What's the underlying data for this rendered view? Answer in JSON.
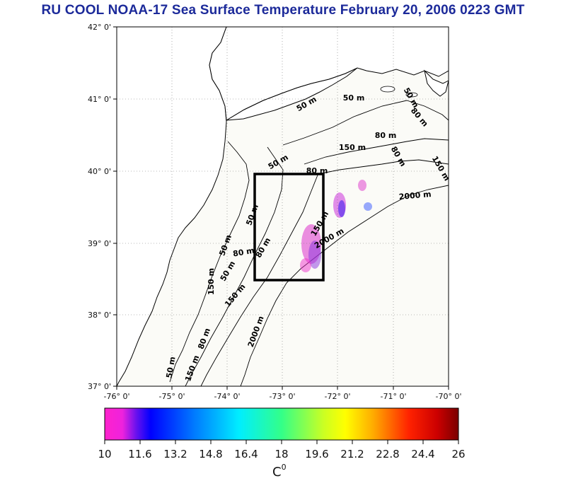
{
  "title": "RU COOL  NOAA-17 Sea Surface Temperature February 20, 2006 0223 GMT",
  "lat_labels": [
    "42° 0'",
    "41° 0'",
    "40° 0'",
    "39° 0'",
    "38° 0'",
    "37° 0'"
  ],
  "lon_labels": [
    "-76° 0'",
    "-75° 0'",
    "-74° 0'",
    "-73° 0'",
    "-72° 0'",
    "-71° 0'",
    "-70° 0'"
  ],
  "contour_labels": [
    "50 m",
    "50 m",
    "50 m",
    "80 m",
    "80 m",
    "80 m",
    "150 m",
    "150 m",
    "2000 m",
    "50 m",
    "80 m",
    "150 m",
    "2000 m",
    "50 m",
    "80 m",
    "150 m",
    "2000 m",
    "50 m",
    "50 m",
    "150 m",
    "80 m",
    "150 m",
    "80 m",
    "50 m"
  ],
  "colorbar": {
    "ticks": [
      "10",
      "11.6",
      "13.2",
      "14.8",
      "16.4",
      "18",
      "19.6",
      "21.2",
      "22.8",
      "24.4",
      "26"
    ],
    "unit": "C",
    "unit_sup": "0"
  },
  "colors": {
    "title": "#1c2a9a",
    "ocean": "#fbfbf7",
    "land": "#ffffff"
  }
}
